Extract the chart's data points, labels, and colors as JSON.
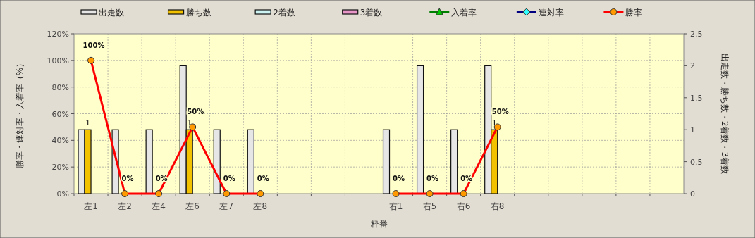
{
  "chart_data": {
    "type": "bar",
    "xlabel": "枠番",
    "ylabel": "勝率・連対率・入着率（%）",
    "y2label": "出走数・勝ち数・2着数・3着数",
    "categories": [
      "左1",
      "左2",
      "左4",
      "左6",
      "左7",
      "左8",
      null,
      null,
      null,
      "右1",
      "右5",
      "右6",
      "右8",
      null,
      null,
      null,
      null,
      null
    ],
    "ylim": [
      0,
      120
    ],
    "yticks": [
      {
        "value": 0,
        "label": "0%"
      },
      {
        "value": 20,
        "label": "20%"
      },
      {
        "value": 40,
        "label": "40%"
      },
      {
        "value": 60,
        "label": "60%"
      },
      {
        "value": 80,
        "label": "80%"
      },
      {
        "value": 100,
        "label": "100%"
      },
      {
        "value": 120,
        "label": "120%"
      }
    ],
    "y2lim": [
      0,
      2.5
    ],
    "y2ticks": [
      0,
      0.5,
      1,
      1.5,
      2,
      2.5
    ],
    "grid": true,
    "legend": "top",
    "series": [
      {
        "name": "出走数",
        "axis": "y2",
        "color": "#e6e6e6",
        "values": [
          1,
          1,
          1,
          2,
          1,
          1,
          null,
          null,
          null,
          1,
          2,
          1,
          2,
          null,
          null,
          null,
          null,
          null
        ]
      },
      {
        "name": "勝ち数",
        "axis": "y2",
        "color": "#f2c200",
        "values": [
          1,
          0,
          0,
          1,
          0,
          0,
          null,
          null,
          null,
          0,
          0,
          0,
          1,
          null,
          null,
          null,
          null,
          null
        ],
        "value_labels": [
          "1",
          null,
          null,
          "1",
          null,
          null,
          null,
          null,
          null,
          null,
          null,
          null,
          "1",
          null,
          null,
          null,
          null,
          null
        ]
      },
      {
        "name": "2着数",
        "axis": "y2",
        "color": "#ccf2f2",
        "values": [
          0,
          0,
          0,
          0,
          0,
          0,
          null,
          null,
          null,
          0,
          0,
          0,
          0,
          null,
          null,
          null,
          null,
          null
        ]
      },
      {
        "name": "3着数",
        "axis": "y2",
        "color": "#e895c8",
        "values": [
          0,
          0,
          0,
          0,
          0,
          0,
          null,
          null,
          null,
          0,
          0,
          0,
          0,
          null,
          null,
          null,
          null,
          null
        ]
      },
      {
        "name": "入着率",
        "type": "line",
        "axis": "y",
        "color": "#008000",
        "marker": "triangle",
        "values": [
          null,
          null,
          null,
          null,
          null,
          null,
          null,
          null,
          null,
          null,
          null,
          null,
          null,
          null,
          null,
          null,
          null,
          null
        ]
      },
      {
        "name": "連対率",
        "type": "line",
        "axis": "y",
        "color": "#000080",
        "marker": "diamond",
        "values": [
          null,
          null,
          null,
          null,
          null,
          null,
          null,
          null,
          null,
          null,
          null,
          null,
          null,
          null,
          null,
          null,
          null,
          null
        ]
      },
      {
        "name": "勝率",
        "type": "line",
        "axis": "y",
        "color": "#ff0000",
        "marker": "circle",
        "values": [
          100,
          0,
          0,
          50,
          0,
          0,
          null,
          null,
          null,
          0,
          0,
          0,
          50,
          null,
          null,
          null,
          null,
          null
        ],
        "value_labels": [
          "100%",
          "0%",
          "0%",
          "50%",
          "0%",
          "0%",
          null,
          null,
          null,
          "0%",
          "0%",
          "0%",
          "50%",
          null,
          null,
          null,
          null,
          null
        ]
      }
    ]
  }
}
